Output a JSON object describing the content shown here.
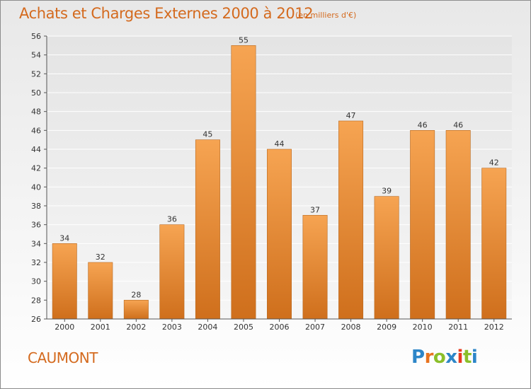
{
  "title": "Achats et Charges Externes 2000 à 2012",
  "subtitle": "(en milliers d'€)",
  "town": "CAUMONT",
  "logo_text": "Proxiti",
  "colors": {
    "bar_top": "#f6a452",
    "bar_bottom": "#cf6f1c",
    "title": "#d46a1e",
    "logo": [
      "#2d86c8",
      "#e8731f",
      "#8bbf2a",
      "#2d86c8",
      "#e83a1f",
      "#8bbf2a",
      "#2d86c8"
    ]
  },
  "chart_data": {
    "type": "bar",
    "title": "Achats et Charges Externes 2000 à 2012",
    "subtitle": "(en milliers d'€)",
    "xlabel": "",
    "ylabel": "",
    "categories": [
      "2000",
      "2001",
      "2002",
      "2003",
      "2004",
      "2005",
      "2006",
      "2007",
      "2008",
      "2009",
      "2010",
      "2011",
      "2012"
    ],
    "values": [
      34,
      32,
      28,
      36,
      45,
      55,
      44,
      37,
      47,
      39,
      46,
      46,
      42
    ],
    "ylim": [
      26,
      56
    ],
    "yticks": [
      26,
      28,
      30,
      32,
      34,
      36,
      38,
      40,
      42,
      44,
      46,
      48,
      50,
      52,
      54,
      56
    ],
    "grid": true,
    "legend": "none"
  }
}
